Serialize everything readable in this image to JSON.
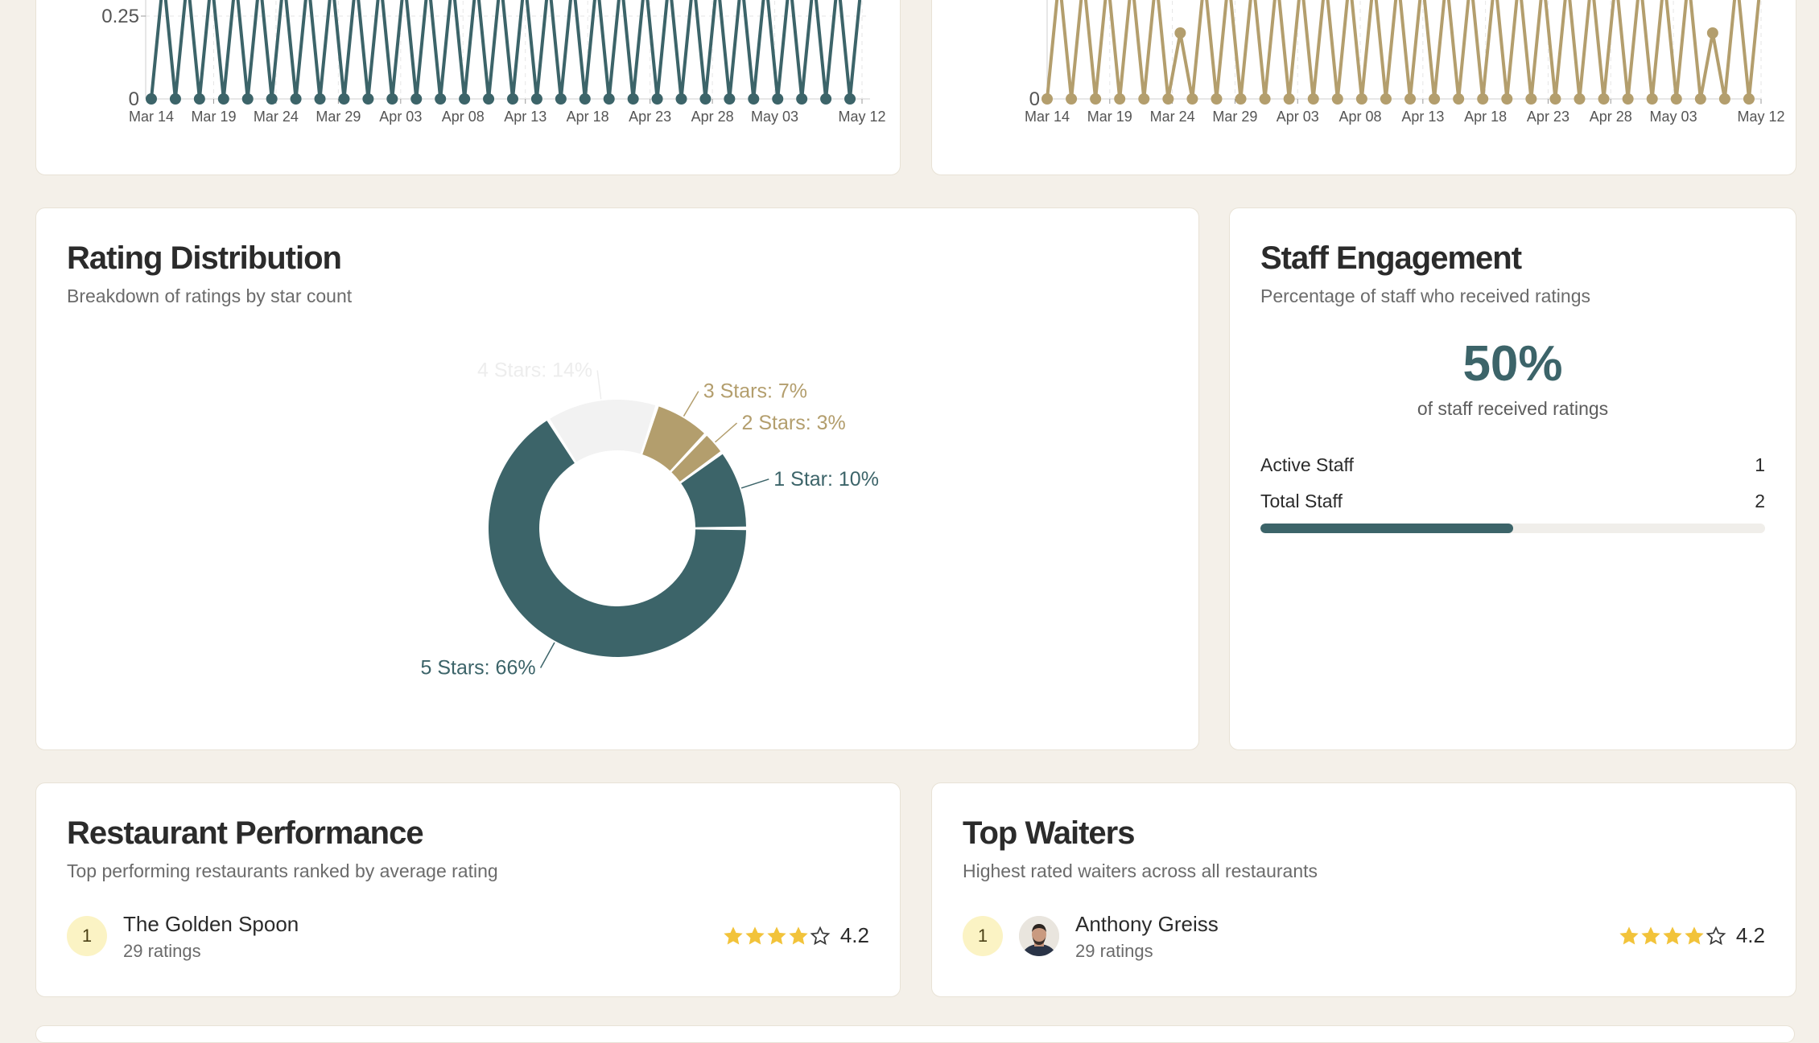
{
  "colors": {
    "teal": "#3c6469",
    "gold": "#b39e6d",
    "light": "#f2f2f2",
    "accent_star": "#f2c33a"
  },
  "top_charts": [
    {
      "y_ticks": [
        "0.25",
        "0"
      ],
      "x_ticks": [
        "Mar 14",
        "Mar 19",
        "Mar 24",
        "Mar 29",
        "Apr 03",
        "Apr 08",
        "Apr 13",
        "Apr 18",
        "Apr 23",
        "Apr 28",
        "May 03",
        "May 12"
      ]
    },
    {
      "y_ticks": [
        "0"
      ],
      "x_ticks": [
        "Mar 14",
        "Mar 19",
        "Mar 24",
        "Mar 29",
        "Apr 03",
        "Apr 08",
        "Apr 13",
        "Apr 18",
        "Apr 23",
        "Apr 28",
        "May 03",
        "May 12"
      ]
    }
  ],
  "rating_distribution": {
    "title": "Rating Distribution",
    "subtitle": "Breakdown of ratings by star count"
  },
  "chart_data": {
    "type": "pie",
    "categories": [
      "1 Star",
      "2 Stars",
      "3 Stars",
      "4 Stars",
      "5 Stars"
    ],
    "values": [
      10,
      3,
      7,
      14,
      66
    ],
    "labels": [
      "1 Star: 10%",
      "2 Stars: 3%",
      "3 Stars: 7%",
      "4 Stars: 14%",
      "5 Stars: 66%"
    ],
    "donut": true
  },
  "staff_engagement": {
    "title": "Staff Engagement",
    "subtitle": "Percentage of staff who received ratings",
    "percent_text": "50%",
    "percent_caption": "of staff received ratings",
    "active_label": "Active Staff",
    "active_value": "1",
    "total_label": "Total Staff",
    "total_value": "2",
    "progress_fraction": 0.5
  },
  "restaurant_performance": {
    "title": "Restaurant Performance",
    "subtitle": "Top performing restaurants ranked by average rating",
    "items": [
      {
        "rank": "1",
        "name": "The Golden Spoon",
        "count": "29 ratings",
        "rating": "4.2",
        "stars_filled": 4
      }
    ]
  },
  "top_waiters": {
    "title": "Top Waiters",
    "subtitle": "Highest rated waiters across all restaurants",
    "items": [
      {
        "rank": "1",
        "name": "Anthony Greiss",
        "count": "29 ratings",
        "rating": "4.2",
        "stars_filled": 4,
        "avatar_icon": "user-avatar-icon"
      }
    ]
  }
}
